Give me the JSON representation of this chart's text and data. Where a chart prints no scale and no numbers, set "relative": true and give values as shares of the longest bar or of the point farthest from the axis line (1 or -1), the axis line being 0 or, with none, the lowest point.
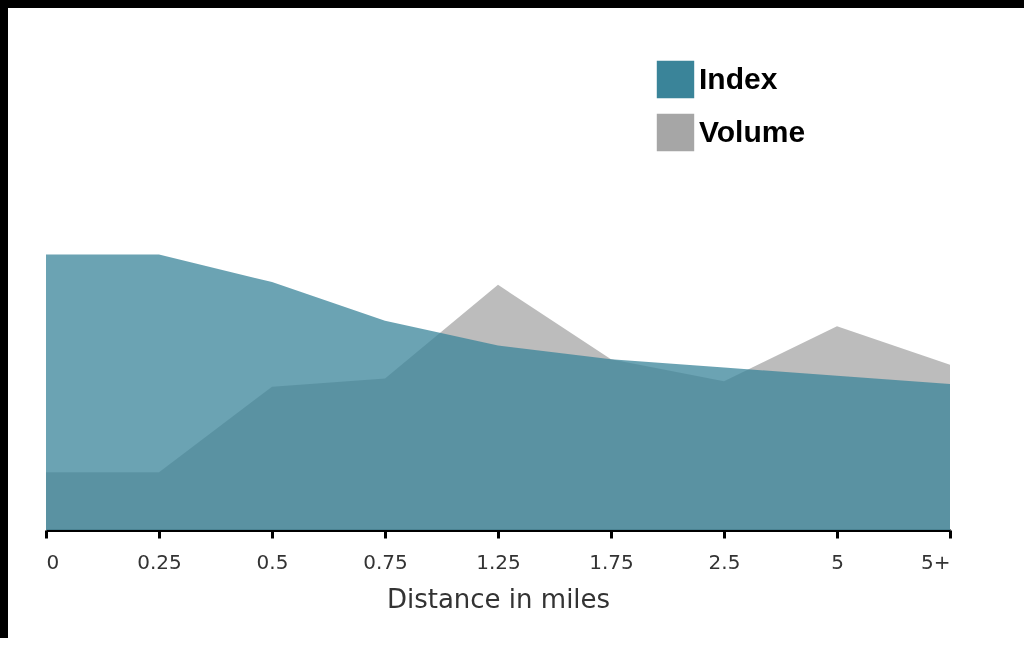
{
  "chart_data": {
    "type": "area",
    "relative": true,
    "xlabel": "Distance in miles",
    "categories": [
      "0",
      "0.25",
      "0.5",
      "0.75",
      "1.25",
      "1.75",
      "2.5",
      "5",
      "5+"
    ],
    "series": [
      {
        "name": "Index",
        "color": "#3a8499",
        "values": [
          1,
          1,
          0.9,
          0.76,
          0.67,
          0.62,
          0.59,
          0.56,
          0.53
        ]
      },
      {
        "name": "Volume",
        "color": "#a6a6a6",
        "values": [
          0.21,
          0.21,
          0.52,
          0.55,
          0.89,
          0.62,
          0.54,
          0.74,
          0.6
        ]
      }
    ],
    "legend": "top right",
    "grid": false
  }
}
